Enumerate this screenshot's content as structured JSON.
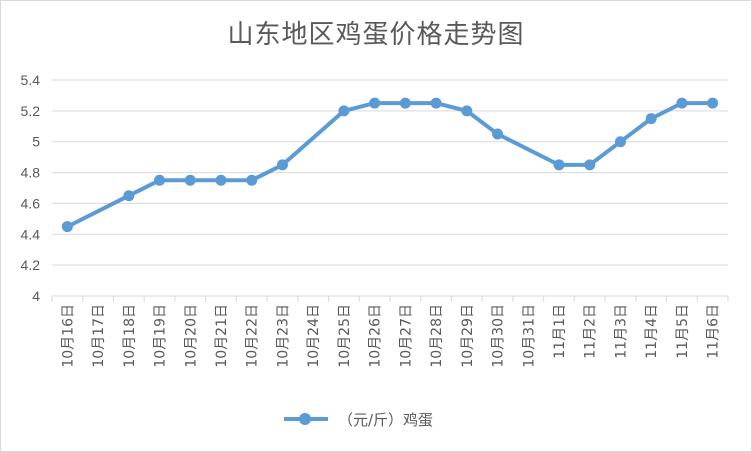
{
  "colors": {
    "series": "#5b9bd5",
    "grid": "#d9d9d9",
    "text": "#595959"
  },
  "chart_data": {
    "type": "line",
    "title": "山东地区鸡蛋价格走势图",
    "xlabel": "",
    "ylabel": "",
    "ylim": [
      4,
      5.4
    ],
    "yticks": [
      "4",
      "4.2",
      "4.4",
      "4.6",
      "4.8",
      "5",
      "5.2",
      "5.4"
    ],
    "grid": true,
    "legend_position": "bottom",
    "categories": [
      "10月16日",
      "10月17日",
      "10月18日",
      "10月19日",
      "10月20日",
      "10月21日",
      "10月22日",
      "10月23日",
      "10月24日",
      "10月25日",
      "10月26日",
      "10月27日",
      "10月28日",
      "10月29日",
      "10月30日",
      "10月31日",
      "11月1日",
      "11月2日",
      "11月3日",
      "11月4日",
      "11月5日",
      "11月6日"
    ],
    "series": [
      {
        "name": "（元/斤）鸡蛋",
        "values": [
          4.45,
          null,
          4.65,
          4.75,
          4.75,
          4.75,
          4.75,
          4.85,
          null,
          5.2,
          5.25,
          5.25,
          5.25,
          5.2,
          5.05,
          null,
          4.85,
          4.85,
          5.0,
          5.15,
          5.25,
          5.25
        ]
      }
    ]
  }
}
